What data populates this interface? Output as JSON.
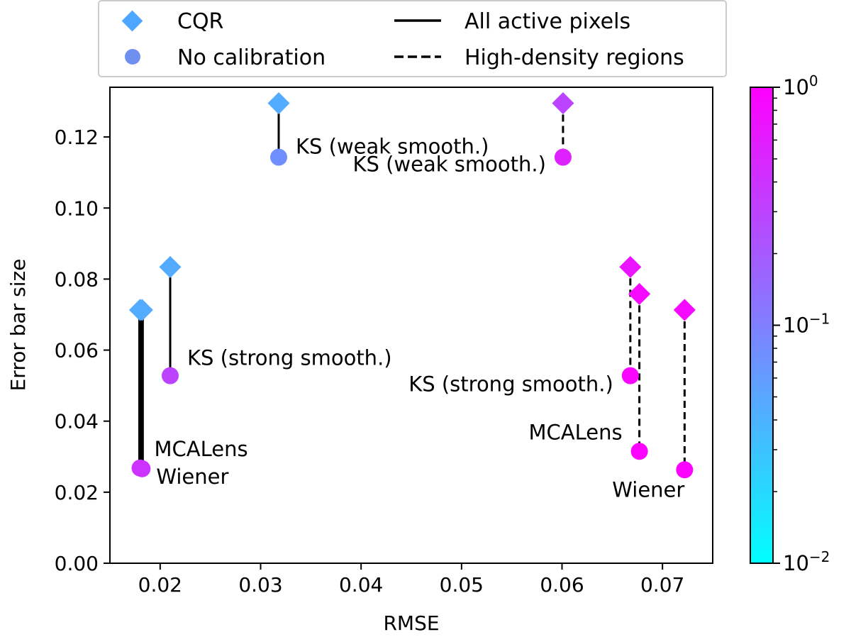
{
  "chart_data": {
    "type": "scatter",
    "xlabel": "RMSE",
    "ylabel": "Error bar size",
    "xlim": [
      0.015,
      0.075
    ],
    "ylim": [
      0.0,
      0.134
    ],
    "xticks": [
      0.02,
      0.03,
      0.04,
      0.05,
      0.06,
      0.07
    ],
    "xtick_labels": [
      "0.02",
      "0.03",
      "0.04",
      "0.05",
      "0.06",
      "0.07"
    ],
    "yticks": [
      0.0,
      0.02,
      0.04,
      0.06,
      0.08,
      0.1,
      0.12
    ],
    "ytick_labels": [
      "0.00",
      "0.02",
      "0.04",
      "0.06",
      "0.08",
      "0.10",
      "0.12"
    ],
    "grid": false,
    "legend": {
      "placement": "top-center-outside",
      "markers": [
        {
          "label": "CQR",
          "marker": "diamond",
          "color": "#4da6ff"
        },
        {
          "label": "No calibration",
          "marker": "circle",
          "color": "#6f90f0"
        }
      ],
      "lines": [
        {
          "label": "All active pixels",
          "style": "solid"
        },
        {
          "label": "High-density regions",
          "style": "dashed"
        }
      ]
    },
    "colorbar": {
      "scale": "log",
      "range": [
        0.01,
        1.0
      ],
      "colormap": "cool",
      "tick_bases": [
        "10",
        "10",
        "10"
      ],
      "tick_exponents": [
        "0",
        "−1",
        "−2"
      ],
      "tick_values": [
        1.0,
        0.1,
        0.01
      ]
    },
    "series": [
      {
        "style": "solid",
        "points": [
          {
            "label": "KS (weak smooth.)",
            "label_pos": "right",
            "x": 0.0318,
            "y_cqr": 0.1295,
            "y_nocal": 0.1143,
            "c_cqr": 0.045,
            "c_nocal": 0.075,
            "lw": 3
          },
          {
            "label": "KS (strong smooth.)",
            "label_pos": "upper-right",
            "x": 0.021,
            "y_cqr": 0.0834,
            "y_nocal": 0.0528,
            "c_cqr": 0.045,
            "c_nocal": 0.3,
            "lw": 3
          },
          {
            "label": "MCALens",
            "label_pos": "right-upper",
            "x": 0.018,
            "y_cqr": 0.0713,
            "y_nocal": 0.0268,
            "c_cqr": 0.045,
            "c_nocal": 0.4,
            "lw": 5
          },
          {
            "label": "Wiener",
            "label_pos": "right-lower",
            "x": 0.0182,
            "y_cqr": 0.0713,
            "y_nocal": 0.0266,
            "c_cqr": 0.045,
            "c_nocal": 0.4,
            "lw": 5
          }
        ]
      },
      {
        "style": "dashed",
        "points": [
          {
            "label": "KS (weak smooth.)",
            "label_pos": "left",
            "x": 0.0601,
            "y_cqr": 0.1295,
            "y_nocal": 0.1143,
            "c_cqr": 0.3,
            "c_nocal": 0.55,
            "lw": 3
          },
          {
            "label": "KS (strong smooth.)",
            "label_pos": "left-lower",
            "x": 0.0668,
            "y_cqr": 0.0834,
            "y_nocal": 0.0528,
            "c_cqr": 0.7,
            "c_nocal": 0.9,
            "lw": 3
          },
          {
            "label": "MCALens",
            "label_pos": "left",
            "x": 0.0677,
            "y_cqr": 0.0758,
            "y_nocal": 0.0315,
            "c_cqr": 0.85,
            "c_nocal": 0.95,
            "lw": 3
          },
          {
            "label": "Wiener",
            "label_pos": "below-left",
            "x": 0.0722,
            "y_cqr": 0.0713,
            "y_nocal": 0.0263,
            "c_cqr": 0.85,
            "c_nocal": 0.95,
            "lw": 3
          }
        ]
      }
    ]
  }
}
